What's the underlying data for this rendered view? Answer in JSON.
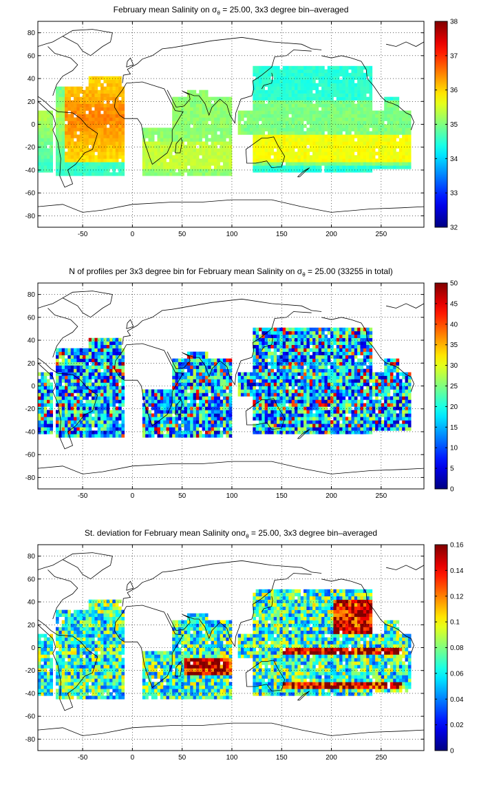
{
  "figure": {
    "panels": [
      {
        "id": "salinity",
        "title_prefix": "February ",
        "title_mean": "mean",
        "title_mid": " Salinity on σ",
        "title_sub": "θ",
        "title_suffix": " = 25.00, 3x3 degree bin–averaged",
        "colorbar_ticks": [
          "32",
          "33",
          "34",
          "35",
          "36",
          "37",
          "38"
        ],
        "colorbar_range": [
          32,
          38
        ],
        "colormap": "jet"
      },
      {
        "id": "n_profiles",
        "title_prefix": "N of profiles per 3x3 degree bin for February ",
        "title_mean": "mean",
        "title_mid": " Salinity on σ",
        "title_sub": "θ",
        "title_suffix": " = 25.00 (33255 in total)",
        "colorbar_ticks": [
          "0",
          "5",
          "10",
          "15",
          "20",
          "25",
          "30",
          "35",
          "40",
          "45",
          "50"
        ],
        "colorbar_range": [
          0,
          50
        ],
        "colormap": "jet"
      },
      {
        "id": "stdev",
        "title_prefix": "St. deviation for February ",
        "title_mean": "mean",
        "title_mid": " Salinity onσ",
        "title_sub": "θ",
        "title_suffix": " = 25.00, 3x3 degree bin–averaged",
        "colorbar_ticks": [
          "0",
          "0.02",
          "0.04",
          "0.06",
          "0.08",
          "0.1",
          "0.12",
          "0.14",
          "0.16"
        ],
        "colorbar_range": [
          0,
          0.16
        ],
        "colormap": "jet"
      }
    ],
    "x_ticks": [
      "-50",
      "0",
      "50",
      "100",
      "150",
      "200",
      "250"
    ],
    "y_ticks": [
      "80",
      "60",
      "40",
      "20",
      "0",
      "-20",
      "-40",
      "-60",
      "-80"
    ],
    "x_range": [
      -95,
      293
    ],
    "y_range": [
      -90,
      90
    ],
    "grid": "dotted",
    "land_color": "#ffffff",
    "coastline_color": "#000000"
  }
}
